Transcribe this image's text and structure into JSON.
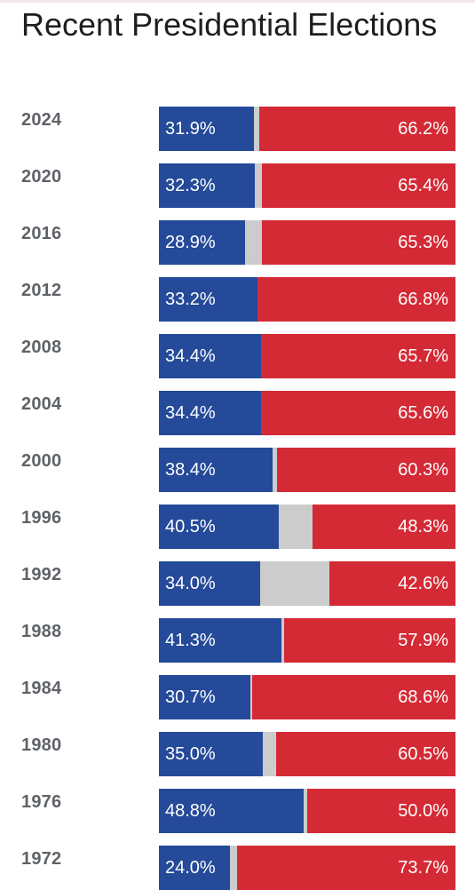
{
  "title": "Recent Presidential Elections",
  "colors": {
    "democrat": "#244a99",
    "republican": "#d42a35",
    "other": "#cccccc",
    "top_strip": "#f5e6ea"
  },
  "chart_data": {
    "type": "bar",
    "orientation": "horizontal",
    "stacked": true,
    "title": "Recent Presidential Elections",
    "categories": [
      "2024",
      "2020",
      "2016",
      "2012",
      "2008",
      "2004",
      "2000",
      "1996",
      "1992",
      "1988",
      "1984",
      "1980",
      "1976",
      "1972"
    ],
    "series": [
      {
        "color": "#244a99",
        "values": [
          31.9,
          32.3,
          28.9,
          33.2,
          34.4,
          34.4,
          38.4,
          40.5,
          34.0,
          41.3,
          30.7,
          35.0,
          48.8,
          24.0
        ],
        "labels": [
          "31.9%",
          "32.3%",
          "28.9%",
          "33.2%",
          "34.4%",
          "34.4%",
          "38.4%",
          "40.5%",
          "34.0%",
          "41.3%",
          "30.7%",
          "35.0%",
          "48.8%",
          "24.0%"
        ]
      },
      {
        "color": "#d42a35",
        "values": [
          66.2,
          65.4,
          65.3,
          66.8,
          65.7,
          65.6,
          60.3,
          48.3,
          42.6,
          57.9,
          68.6,
          60.5,
          50.0,
          73.7
        ],
        "labels": [
          "66.2%",
          "65.4%",
          "65.3%",
          "66.8%",
          "65.7%",
          "65.6%",
          "60.3%",
          "48.3%",
          "42.6%",
          "57.9%",
          "68.6%",
          "60.5%",
          "50.0%",
          "73.7%"
        ]
      }
    ],
    "xlim": [
      0,
      100
    ]
  }
}
